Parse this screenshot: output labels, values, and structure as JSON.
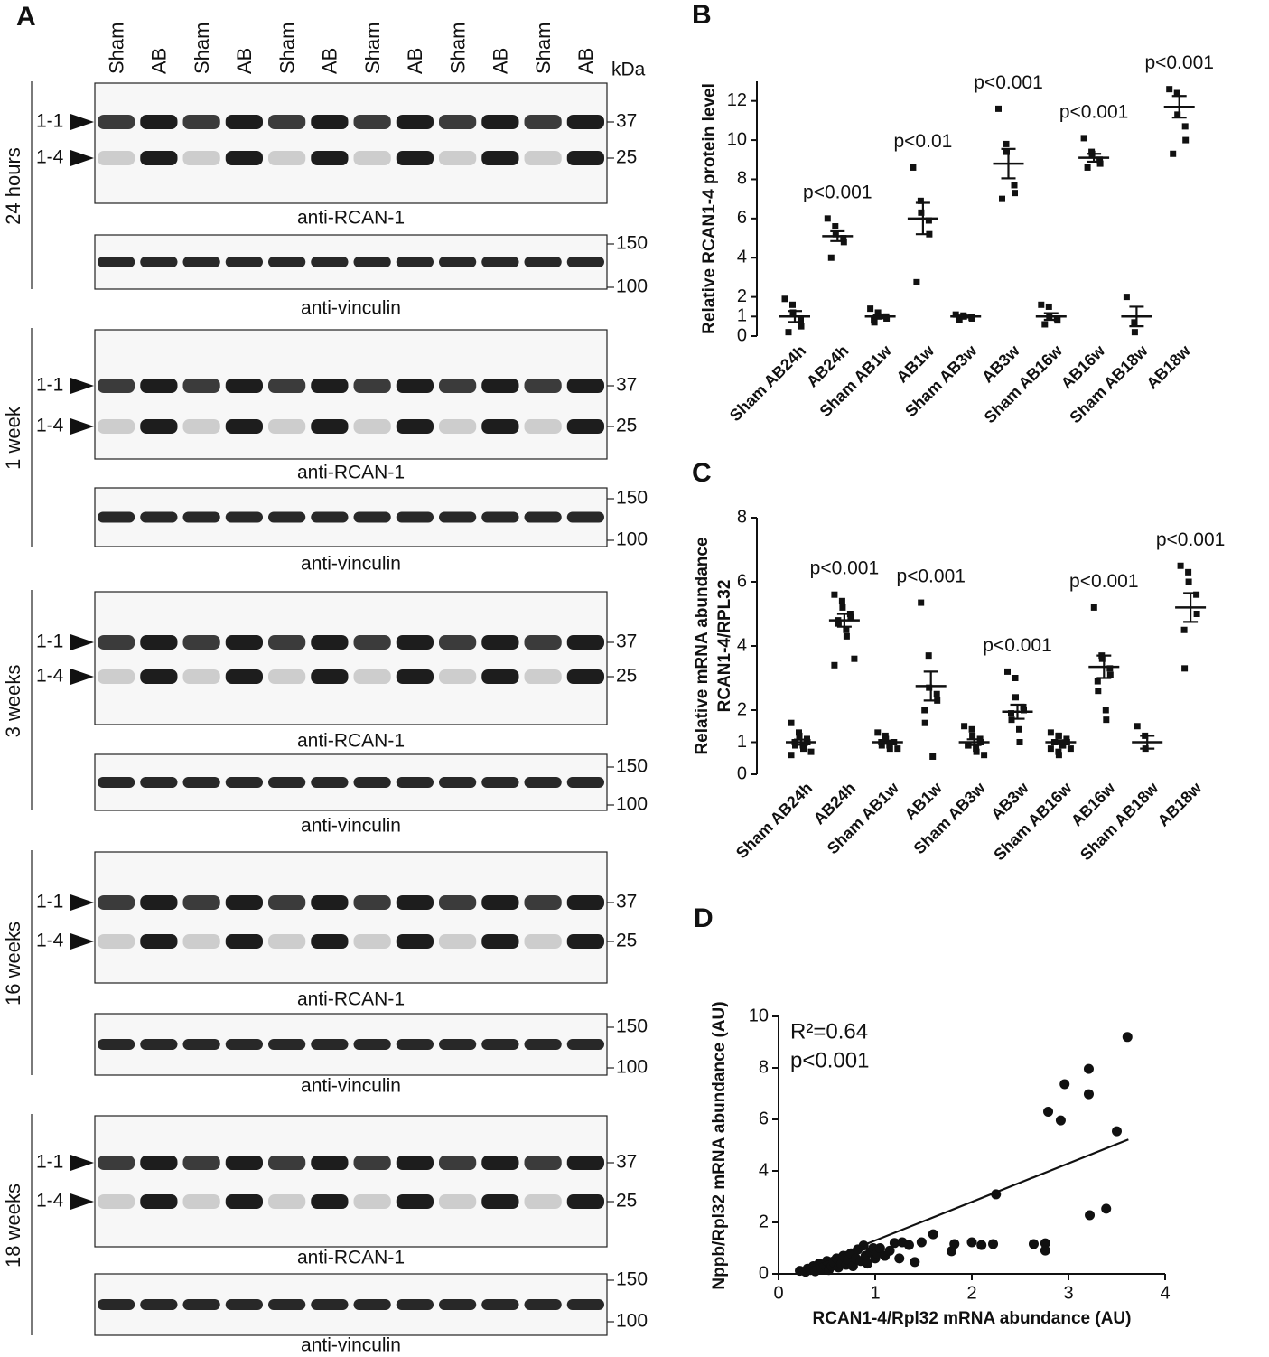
{
  "figure": {
    "panel_labels": [
      "A",
      "B",
      "C",
      "D"
    ]
  },
  "blots": {
    "lanes": [
      "Sham",
      "AB",
      "Sham",
      "AB",
      "Sham",
      "AB",
      "Sham",
      "AB",
      "Sham",
      "AB",
      "Sham",
      "AB"
    ],
    "kda_label": "kDa",
    "blocks": [
      {
        "time": "24 hours",
        "isoforms": [
          "1-1",
          "1-4"
        ],
        "rcan_markers": [
          "37",
          "25"
        ],
        "rcan_caption": "anti-RCAN-1",
        "vinculin_markers": [
          "150",
          "100"
        ],
        "vinculin_caption": "anti-vinculin"
      },
      {
        "time": "1 week",
        "isoforms": [
          "1-1",
          "1-4"
        ],
        "rcan_markers": [
          "37",
          "25"
        ],
        "rcan_caption": "anti-RCAN-1",
        "vinculin_markers": [
          "150",
          "100"
        ],
        "vinculin_caption": "anti-vinculin"
      },
      {
        "time": "3 weeks",
        "isoforms": [
          "1-1",
          "1-4"
        ],
        "rcan_markers": [
          "37",
          "25"
        ],
        "rcan_caption": "anti-RCAN-1",
        "vinculin_markers": [
          "150",
          "100"
        ],
        "vinculin_caption": "anti-vinculin"
      },
      {
        "time": "16 weeks",
        "isoforms": [
          "1-1",
          "1-4"
        ],
        "rcan_markers": [
          "37",
          "25"
        ],
        "rcan_caption": "anti-RCAN-1",
        "vinculin_markers": [
          "150",
          "100"
        ],
        "vinculin_caption": "anti-vinculin"
      },
      {
        "time": "18 weeks",
        "isoforms": [
          "1-1",
          "1-4"
        ],
        "rcan_markers": [
          "37",
          "25"
        ],
        "rcan_caption": "anti-RCAN-1",
        "vinculin_markers": [
          "150",
          "100"
        ],
        "vinculin_caption": "anti-vinculin"
      }
    ]
  },
  "chart_data": [
    {
      "type": "dot-plot",
      "y_label": [
        "Relative RCAN1-4 protein level"
      ],
      "categories": [
        "Sham AB24h",
        "AB24h",
        "Sham AB1w",
        "AB1w",
        "Sham AB3w",
        "AB3w",
        "Sham AB16w",
        "AB16w",
        "Sham AB18w",
        "AB18w"
      ],
      "values": [
        [
          1.9,
          1.6,
          1.2,
          0.8,
          0.5,
          0.2
        ],
        [
          6.0,
          5.6,
          5.2,
          5.0,
          4.8,
          4.0
        ],
        [
          1.4,
          1.2,
          1.0,
          1.0,
          0.9,
          0.8,
          0.7
        ],
        [
          8.6,
          6.9,
          6.3,
          5.9,
          5.2,
          2.75
        ],
        [
          1.1,
          1.05,
          1.0,
          0.95,
          0.9,
          0.85
        ],
        [
          11.6,
          9.8,
          9.4,
          7.7,
          7.3,
          7.0
        ],
        [
          1.6,
          1.5,
          1.0,
          0.9,
          0.8,
          0.6
        ],
        [
          10.1,
          9.4,
          9.3,
          9.0,
          8.8,
          8.6
        ],
        [
          2.0,
          0.7,
          0.2
        ],
        [
          12.6,
          12.4,
          11.3,
          10.7,
          10.0,
          9.3
        ]
      ],
      "mean": [
        1.0,
        5.1,
        1.0,
        6.0,
        1.0,
        8.8,
        1.0,
        9.1,
        1.0,
        11.7
      ],
      "sem": [
        0.28,
        0.25,
        0.08,
        0.8,
        0.05,
        0.75,
        0.17,
        0.2,
        0.5,
        0.55
      ],
      "annotations": [
        null,
        "p<0.001",
        null,
        "p<0.01",
        null,
        "p<0.001",
        null,
        "p<0.001",
        null,
        "p<0.001"
      ],
      "ylim": [
        0,
        13
      ],
      "yticks": [
        0,
        1,
        2,
        4,
        6,
        8,
        10,
        12
      ],
      "color": "#111111"
    },
    {
      "type": "dot-plot",
      "y_label": [
        "Relative mRNA abundance",
        "RCAN1-4/RPL32"
      ],
      "categories": [
        "Sham AB24h",
        "AB24h",
        "Sham AB1w",
        "AB1w",
        "Sham AB3w",
        "AB3w",
        "Sham AB16w",
        "AB16w",
        "Sham AB18w",
        "AB18w"
      ],
      "values": [
        [
          1.6,
          1.3,
          1.2,
          1.1,
          1.0,
          1.0,
          0.9,
          0.9,
          0.8,
          0.7,
          0.6
        ],
        [
          5.6,
          5.4,
          5.2,
          5.0,
          4.9,
          4.8,
          4.7,
          4.5,
          4.3,
          3.6,
          3.4
        ],
        [
          1.3,
          1.2,
          1.1,
          1.0,
          1.0,
          1.0,
          0.9,
          0.9,
          0.8,
          0.8
        ],
        [
          5.35,
          3.7,
          2.7,
          2.5,
          2.3,
          2.0,
          1.6,
          0.55
        ],
        [
          1.5,
          1.4,
          1.2,
          1.1,
          1.0,
          0.9,
          0.9,
          0.8,
          0.7,
          0.6
        ],
        [
          3.2,
          3.0,
          2.4,
          2.1,
          2.0,
          1.9,
          1.7,
          1.4,
          1.0
        ],
        [
          1.3,
          1.2,
          1.2,
          1.1,
          1.0,
          1.0,
          1.0,
          0.9,
          0.9,
          0.8,
          0.8,
          0.7,
          0.6
        ],
        [
          5.2,
          3.7,
          3.6,
          3.3,
          3.1,
          2.9,
          2.6,
          2.0,
          1.7
        ],
        [
          1.5,
          1.2,
          0.8
        ],
        [
          6.5,
          6.3,
          6.0,
          5.6,
          5.0,
          4.5,
          3.3
        ]
      ],
      "mean": [
        1.0,
        4.8,
        1.0,
        2.75,
        1.0,
        1.95,
        1.0,
        3.35,
        1.0,
        5.2
      ],
      "sem": [
        0.08,
        0.2,
        0.05,
        0.45,
        0.09,
        0.22,
        0.06,
        0.35,
        0.2,
        0.45
      ],
      "annotations": [
        null,
        "p<0.001",
        null,
        "p<0.001",
        null,
        "p<0.001",
        null,
        "p<0.001",
        null,
        "p<0.001"
      ],
      "ylim": [
        0,
        8
      ],
      "yticks": [
        0,
        1,
        2,
        4,
        6,
        8
      ],
      "color": "#111111"
    },
    {
      "type": "scatter",
      "x_label": "RCAN1-4/Rpl32 mRNA abundance (AU)",
      "y_label": [
        "Nppb/Rpl32 mRNA abundance (AU)"
      ],
      "annotations": [
        "R²=0.64",
        "p<0.001"
      ],
      "x": [
        0.22,
        0.28,
        0.3,
        0.33,
        0.36,
        0.38,
        0.4,
        0.42,
        0.45,
        0.47,
        0.5,
        0.52,
        0.55,
        0.57,
        0.6,
        0.62,
        0.65,
        0.67,
        0.7,
        0.72,
        0.75,
        0.77,
        0.8,
        0.82,
        0.85,
        0.88,
        0.9,
        0.92,
        0.95,
        0.98,
        1.0,
        1.02,
        1.05,
        1.1,
        1.15,
        1.2,
        1.25,
        1.28,
        1.35,
        1.41,
        1.48,
        1.6,
        1.79,
        1.82,
        2.0,
        2.1,
        2.22,
        2.25,
        2.64,
        2.76,
        2.76,
        2.79,
        2.92,
        2.96,
        3.21,
        3.21,
        3.22,
        3.39,
        3.5,
        3.61
      ],
      "values": [
        0.12,
        0.08,
        0.2,
        0.15,
        0.3,
        0.1,
        0.25,
        0.4,
        0.2,
        0.35,
        0.5,
        0.15,
        0.3,
        0.45,
        0.6,
        0.25,
        0.4,
        0.7,
        0.35,
        0.55,
        0.8,
        0.3,
        0.6,
        0.95,
        0.5,
        1.1,
        0.7,
        0.4,
        0.85,
        1.0,
        0.6,
        0.8,
        1.0,
        0.7,
        0.9,
        1.2,
        0.6,
        1.23,
        1.12,
        0.46,
        1.23,
        1.54,
        0.88,
        1.16,
        1.23,
        1.12,
        1.16,
        3.09,
        1.16,
        1.19,
        0.91,
        6.3,
        5.96,
        7.37,
        7.96,
        6.98,
        2.28,
        2.53,
        5.54,
        9.2
      ],
      "fit": {
        "x": [
          0.2,
          3.62
        ],
        "y": [
          0.1,
          5.22
        ]
      },
      "xlim": [
        0,
        4
      ],
      "xticks": [
        0,
        1,
        2,
        3,
        4
      ],
      "ylim": [
        0,
        10
      ],
      "yticks": [
        0,
        2,
        4,
        6,
        8,
        10
      ],
      "color": "#111111"
    }
  ]
}
